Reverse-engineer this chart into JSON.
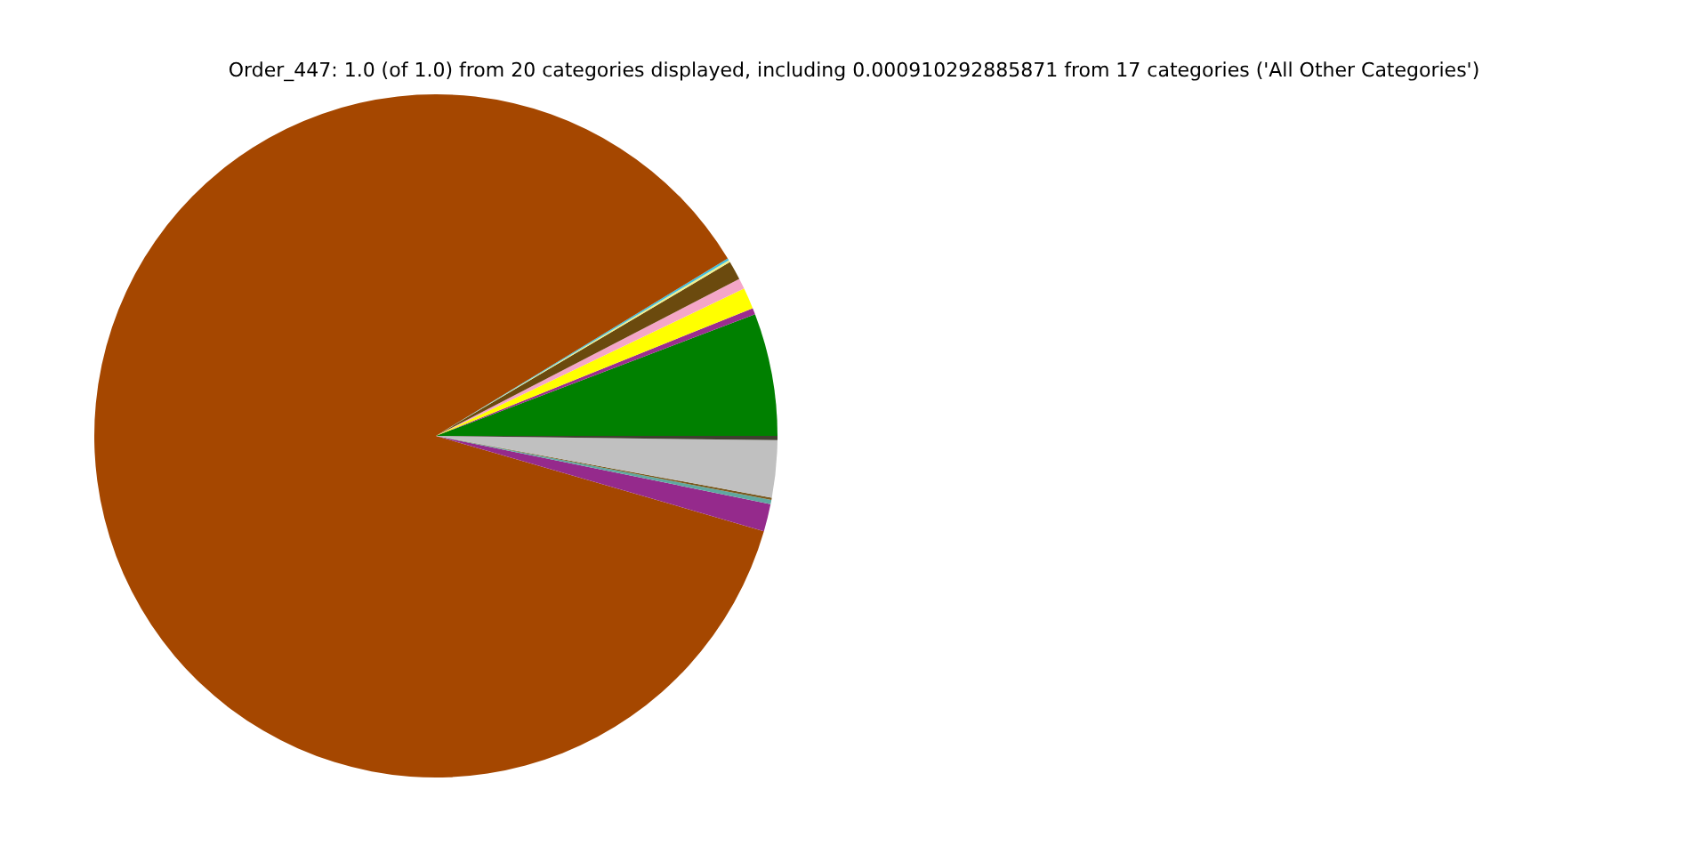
{
  "chart_data": {
    "type": "pie",
    "title": "Order_447: 1.0 (of 1.0) from 20 categories displayed, including 0.000910292885871 from 17 categories ('All Other Categories')",
    "categories": [
      null,
      null,
      null,
      null,
      null,
      null,
      null,
      null,
      null,
      null,
      null,
      null,
      null
    ],
    "values": [
      5.8,
      0.3,
      1.0,
      0.5,
      0.9,
      0.1,
      0.1,
      86.8,
      1.3,
      0.2,
      0.1,
      2.7,
      0.2
    ],
    "colors": [
      "#008000",
      "#9b2d8f",
      "#ffff00",
      "#f4a6c8",
      "#6b4a0e",
      "#f0f08c",
      "#40c0e0",
      "#a54700",
      "#952a8c",
      "#5fa8a0",
      "#7a5a20",
      "#c0c0c0",
      "#404030"
    ],
    "legend": false
  }
}
